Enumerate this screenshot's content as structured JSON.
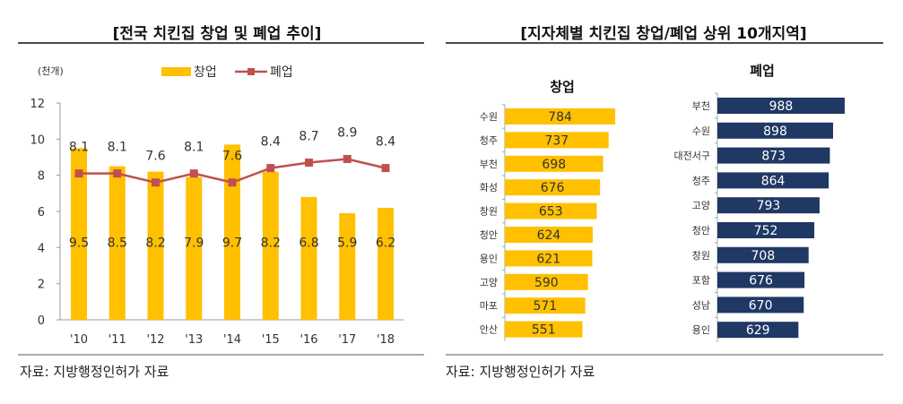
{
  "left": {
    "title": "[전국 치킨집 창업 및 폐업 추이]",
    "source": "자료: 지방행정인허가 자료",
    "unit": "(천개)"
  },
  "right": {
    "title": "[지자체별 치킨집 창업/폐업 상위 10개지역]",
    "source": "자료: 지방행정인허가 자료"
  },
  "colors": {
    "open": "#FFC000",
    "close": "#C0504D",
    "close_bar": "#1F3864"
  },
  "chart_data": [
    {
      "type": "bar+line",
      "categories": [
        "'10",
        "'11",
        "'12",
        "'13",
        "'14",
        "'15",
        "'16",
        "'17",
        "'18"
      ],
      "ylim": [
        0,
        12
      ],
      "yticks": [
        "0",
        "2",
        "4",
        "6",
        "8",
        "10",
        "12"
      ],
      "legend": "top",
      "series": [
        {
          "name": "창업",
          "type": "bar",
          "values": [
            9.5,
            8.5,
            8.2,
            7.9,
            9.7,
            8.2,
            6.8,
            5.9,
            6.2
          ]
        },
        {
          "name": "폐업",
          "type": "line",
          "values": [
            8.1,
            8.1,
            7.6,
            8.1,
            7.6,
            8.4,
            8.7,
            8.9,
            8.4
          ]
        }
      ]
    },
    {
      "type": "bar",
      "orientation": "horizontal",
      "title": "창업",
      "categories": [
        "수원",
        "청주",
        "부천",
        "화성",
        "창원",
        "청안",
        "용인",
        "고양",
        "마포",
        "안산"
      ],
      "values": [
        784,
        737,
        698,
        676,
        653,
        624,
        621,
        590,
        571,
        551
      ]
    },
    {
      "type": "bar",
      "orientation": "horizontal",
      "title": "폐업",
      "categories": [
        "부천",
        "수원",
        "대전서구",
        "청주",
        "고양",
        "청안",
        "창원",
        "포함",
        "성남",
        "용인"
      ],
      "values": [
        988,
        898,
        873,
        864,
        793,
        752,
        708,
        676,
        670,
        629
      ]
    }
  ]
}
